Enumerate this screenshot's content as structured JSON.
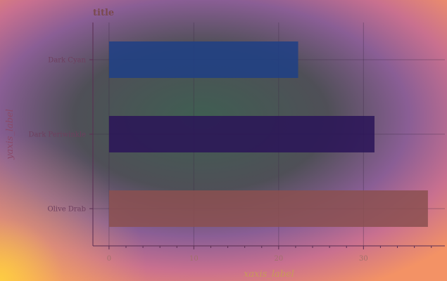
{
  "chart_data": {
    "type": "bar",
    "orientation": "horizontal",
    "title": "title",
    "xlabel": "xaxis_label",
    "ylabel": "yaxis_label",
    "categories": [
      "Dark Cyan",
      "Dark Periwinkle",
      "Olive Drab"
    ],
    "values": [
      22.3,
      31.3,
      37.6
    ],
    "colors": [
      "#1f3f86",
      "#2a1458",
      "#8b5050"
    ],
    "xlim": [
      -1.9,
      39.6
    ],
    "xticks": [
      0,
      10,
      20,
      30
    ],
    "grid": true,
    "legend": "none"
  },
  "colors": {
    "title": "#7a4a4f",
    "axis_line": "#5a2d52",
    "xlabel": "#c9985a",
    "ylabel": "#8a4a6a"
  }
}
